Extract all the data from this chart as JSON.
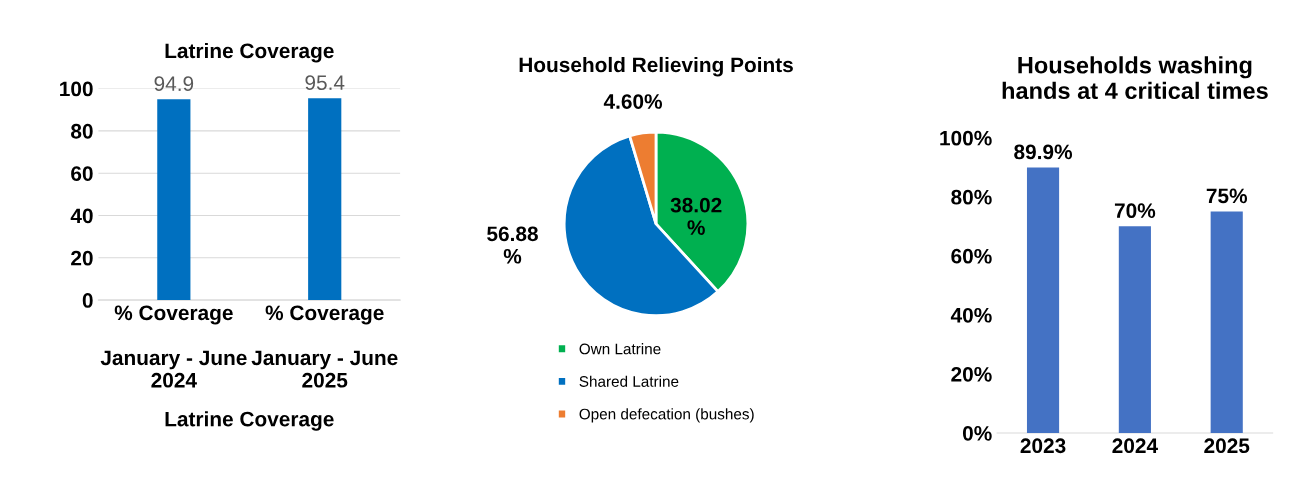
{
  "chart_data": [
    {
      "type": "bar",
      "title": "Latrine Coverage",
      "xlabel": "Latrine Coverage",
      "categories": [
        "% Coverage\n\nJanuary - June\n2024",
        "% Coverage\n\nJanuary - June\n2025"
      ],
      "values": [
        94.9,
        95.4
      ],
      "color": "#0070c0",
      "ylim": [
        0,
        100
      ],
      "yticks": [
        0,
        20,
        40,
        60,
        80,
        100
      ],
      "grid": "y",
      "data_labels": true
    },
    {
      "type": "pie",
      "title": "Household Relieving Points",
      "categories": [
        "Own Latrine",
        "Shared Latrine",
        "Open defecation (bushes)"
      ],
      "values": [
        38.02,
        56.88,
        4.6
      ],
      "colors": [
        "#00b050",
        "#0070c0",
        "#ed7d31"
      ],
      "value_labels": [
        "38.02\n%",
        "56.88\n%",
        "4.60%"
      ],
      "legend": "bottom"
    },
    {
      "type": "bar",
      "title": "Households washing\nhands at 4 critical times",
      "categories": [
        "2023",
        "2024",
        "2025"
      ],
      "values": [
        89.9,
        70,
        75
      ],
      "color": "#4472c4",
      "ylim": [
        0,
        100
      ],
      "yticks": [
        {
          "value": 0,
          "label": "0%"
        },
        {
          "value": 20,
          "label": "20%"
        },
        {
          "value": 40,
          "label": "40%"
        },
        {
          "value": 60,
          "label": "60%"
        },
        {
          "value": 80,
          "label": "80%"
        },
        {
          "value": 100,
          "label": "100%"
        }
      ],
      "value_labels": [
        "89.9%",
        "70%",
        "75%"
      ],
      "grid": false
    }
  ]
}
